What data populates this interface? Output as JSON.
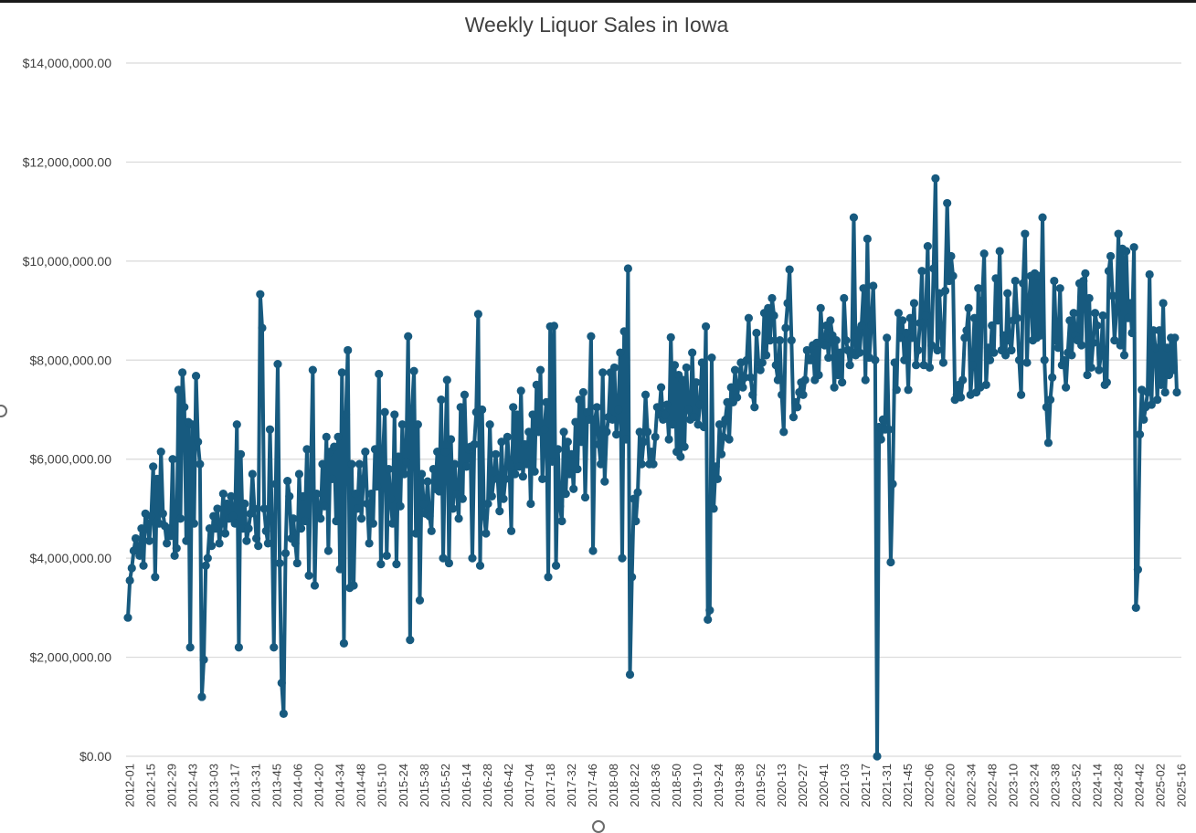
{
  "chart_data": {
    "type": "line",
    "title": "Weekly Liquor Sales in Iowa",
    "xlabel": "",
    "ylabel": "",
    "ylim": [
      0,
      14000000
    ],
    "y_ticks": [
      {
        "value": 0,
        "label": "$0.00"
      },
      {
        "value": 2000000,
        "label": "$2,000,000.00"
      },
      {
        "value": 4000000,
        "label": "$4,000,000.00"
      },
      {
        "value": 6000000,
        "label": "$6,000,000.00"
      },
      {
        "value": 8000000,
        "label": "$8,000,000.00"
      },
      {
        "value": 10000000,
        "label": "$10,000,000.00"
      },
      {
        "value": 12000000,
        "label": "$12,000,000.00"
      },
      {
        "value": 14000000,
        "label": "$14,000,000.00"
      }
    ],
    "x_tick_labels": [
      "2012-01",
      "2012-15",
      "2012-29",
      "2012-43",
      "2013-03",
      "2013-17",
      "2013-31",
      "2013-45",
      "2014-06",
      "2014-20",
      "2014-34",
      "2014-48",
      "2015-10",
      "2015-24",
      "2015-38",
      "2015-52",
      "2016-14",
      "2016-28",
      "2016-42",
      "2017-04",
      "2017-18",
      "2017-32",
      "2017-46",
      "2018-08",
      "2018-22",
      "2018-36",
      "2018-50",
      "2019-10",
      "2019-24",
      "2019-38",
      "2019-52",
      "2020-13",
      "2020-27",
      "2020-41",
      "2021-03",
      "2021-17",
      "2021-31",
      "2021-45",
      "2022-06",
      "2022-20",
      "2022-34",
      "2022-48",
      "2023-10",
      "2023-24",
      "2023-38",
      "2023-52",
      "2024-14",
      "2024-28",
      "2024-42",
      "2025-02",
      "2025-16"
    ],
    "grid": true,
    "legend": "none",
    "color": "#175a7f",
    "series": [
      {
        "values": [
          2800000,
          3550000,
          3800000,
          4150000,
          4400000,
          4250000,
          4050000,
          4600000,
          3850000,
          4900000,
          4700000,
          4350000,
          4850000,
          5850000,
          3620000,
          5600000,
          4700000,
          6150000,
          4900000,
          4650000,
          4300000,
          4600000,
          4450000,
          6000000,
          4050000,
          4200000,
          7400000,
          4800000,
          7750000,
          7050000,
          4350000,
          6750000,
          2200000,
          6700000,
          4700000,
          7680000,
          6350000,
          5900000,
          1200000,
          1950000,
          3850000,
          4000000,
          4600000,
          4250000,
          4850000,
          4600000,
          5000000,
          4300000,
          4700000,
          5300000,
          4500000,
          5100000,
          4800000,
          5250000,
          4850000,
          4700000,
          6700000,
          2200000,
          6100000,
          4600000,
          5100000,
          4350000,
          4600000,
          4900000,
          5700000,
          5000000,
          4400000,
          4250000,
          9330000,
          8650000,
          5000000,
          4550000,
          4300000,
          6600000,
          4800000,
          2200000,
          5500000,
          7920000,
          3900000,
          1480000,
          860000,
          4100000,
          5560000,
          5250000,
          4400000,
          4800000,
          4300000,
          3900000,
          5700000,
          4600000,
          5250000,
          4750000,
          6200000,
          3650000,
          5700000,
          7800000,
          3450000,
          5300000,
          4950000,
          4800000,
          5900000,
          5050000,
          6450000,
          4150000,
          6150000,
          5600000,
          6250000,
          4750000,
          6450000,
          3780000,
          7750000,
          2280000,
          6900000,
          8200000,
          3400000,
          5900000,
          3450000,
          5300000,
          5000000,
          5900000,
          4800000,
          5600000,
          6150000,
          5100000,
          4300000,
          5300000,
          4700000,
          6200000,
          5450000,
          7720000,
          3880000,
          6050000,
          6950000,
          4050000,
          5800000,
          5200000,
          4700000,
          6900000,
          3880000,
          6050000,
          5050000,
          6700000,
          5700000,
          5950000,
          8480000,
          2350000,
          7000000,
          7780000,
          4500000,
          6700000,
          3150000,
          5700000,
          5100000,
          4900000,
          5550000,
          4850000,
          4550000,
          5800000,
          5400000,
          6150000,
          5350000,
          7200000,
          4000000,
          6150000,
          7600000,
          3900000,
          6400000,
          5000000,
          5900000,
          5300000,
          4800000,
          7050000,
          5200000,
          7300000,
          5850000,
          6200000,
          6250000,
          4000000,
          6300000,
          6950000,
          8930000,
          3850000,
          7000000,
          4850000,
          4500000,
          5100000,
          6700000,
          5250000,
          5600000,
          6100000,
          5600000,
          4950000,
          6350000,
          5200000,
          5600000,
          6450000,
          5900000,
          4550000,
          7050000,
          5700000,
          6900000,
          5850000,
          7380000,
          5650000,
          6300000,
          5900000,
          6550000,
          5100000,
          6900000,
          5750000,
          7500000,
          6550000,
          7800000,
          5600000,
          6600000,
          7150000,
          3620000,
          8680000,
          5950000,
          8690000,
          3850000,
          6200000,
          5050000,
          4750000,
          6550000,
          5300000,
          6350000,
          5700000,
          6100000,
          5400000,
          6750000,
          5800000,
          7200000,
          6350000,
          7350000,
          5230000,
          6950000,
          6800000,
          8480000,
          4150000,
          6800000,
          7050000,
          6300000,
          5900000,
          7750000,
          5550000,
          6550000,
          6850000,
          7750000,
          6800000,
          7850000,
          6500000,
          7000000,
          8150000,
          4000000,
          8580000,
          6400000,
          9850000,
          1650000,
          3620000,
          5200000,
          4750000,
          5330000,
          6550000,
          5900000,
          6350000,
          7300000,
          6550000,
          5900000,
          6150000,
          5900000,
          6450000,
          7050000,
          6900000,
          7450000,
          6800000,
          6900000,
          7100000,
          6400000,
          8460000,
          6700000,
          7900000,
          6150000,
          7700000,
          6050000,
          7600000,
          6250000,
          7850000,
          7000000,
          6800000,
          8150000,
          6850000,
          7550000,
          6700000,
          7100000,
          7950000,
          6650000,
          8680000,
          2760000,
          2950000,
          8050000,
          5000000,
          5850000,
          5600000,
          6700000,
          6100000,
          6450000,
          6800000,
          7150000,
          6400000,
          7450000,
          7150000,
          7800000,
          7250000,
          7500000,
          7950000,
          7450000,
          7650000,
          8000000,
          8850000,
          7650000,
          7300000,
          7050000,
          8550000,
          7950000,
          7800000,
          7950000,
          8950000,
          8100000,
          9050000,
          8400000,
          9250000,
          8900000,
          7900000,
          7600000,
          8400000,
          7300000,
          6550000,
          8650000,
          9150000,
          9830000,
          8400000,
          6850000,
          7150000,
          7050000,
          7350000,
          7550000,
          7300000,
          7600000,
          8200000,
          8000000,
          8000000,
          8300000,
          7600000,
          8350000,
          7700000,
          9050000,
          8350000,
          8300000,
          8700000,
          8050000,
          8800000,
          8500000,
          7450000,
          8400000,
          7700000,
          8150000,
          7550000,
          9250000,
          8400000,
          8200000,
          7900000,
          8150000,
          10880000,
          8100000,
          8600000,
          8150000,
          8700000,
          9450000,
          7600000,
          10450000,
          8050000,
          8700000,
          9500000,
          8000000,
          0,
          6650000,
          6400000,
          6800000,
          6600000,
          8450000,
          6600000,
          3920000,
          5500000,
          7950000,
          7400000,
          8950000,
          8450000,
          8800000,
          8000000,
          8550000,
          7400000,
          8850000,
          8450000,
          9150000,
          7900000,
          8200000,
          8750000,
          9800000,
          7900000,
          8900000,
          10300000,
          7850000,
          8300000,
          9850000,
          11670000,
          8200000,
          9350000,
          8500000,
          7950000,
          9400000,
          11170000,
          9600000,
          10100000,
          9700000,
          7200000,
          7300000,
          7500000,
          7250000,
          7600000,
          8450000,
          8600000,
          9050000,
          7300000,
          7900000,
          8850000,
          7350000,
          9450000,
          7450000,
          9200000,
          10150000,
          7500000,
          8250000,
          8000000,
          8700000,
          8150000,
          9650000,
          8800000,
          10200000,
          8200000,
          8500000,
          8100000,
          9350000,
          8400000,
          8200000,
          8800000,
          9600000,
          8850000,
          8000000,
          7300000,
          9550000,
          10550000,
          7950000,
          9150000,
          9700000,
          8400000,
          9750000,
          8450000,
          9700000,
          8500000,
          10880000,
          8000000,
          7050000,
          6330000,
          7200000,
          7650000,
          9600000,
          8400000,
          8250000,
          9450000,
          7900000,
          8000000,
          7450000,
          8150000,
          8800000,
          8100000,
          8950000,
          8500000,
          8400000,
          9550000,
          8300000,
          9600000,
          9750000,
          7700000,
          9250000,
          7850000,
          8350000,
          8950000,
          8700000,
          7800000,
          8100000,
          8900000,
          7500000,
          7550000,
          9800000,
          10100000,
          9300000,
          8400000,
          9000000,
          10550000,
          8300000,
          10250000,
          8100000,
          10200000,
          8850000,
          9150000,
          8550000,
          10280000,
          3000000,
          3770000,
          6500000,
          7400000,
          6800000,
          7050000,
          7350000,
          9730000,
          7100000,
          8600000,
          8250000,
          7200000,
          8600000,
          7500000,
          9150000,
          7350000,
          8250000,
          7700000,
          8450000,
          7800000,
          8450000,
          7350000
        ]
      }
    ]
  }
}
